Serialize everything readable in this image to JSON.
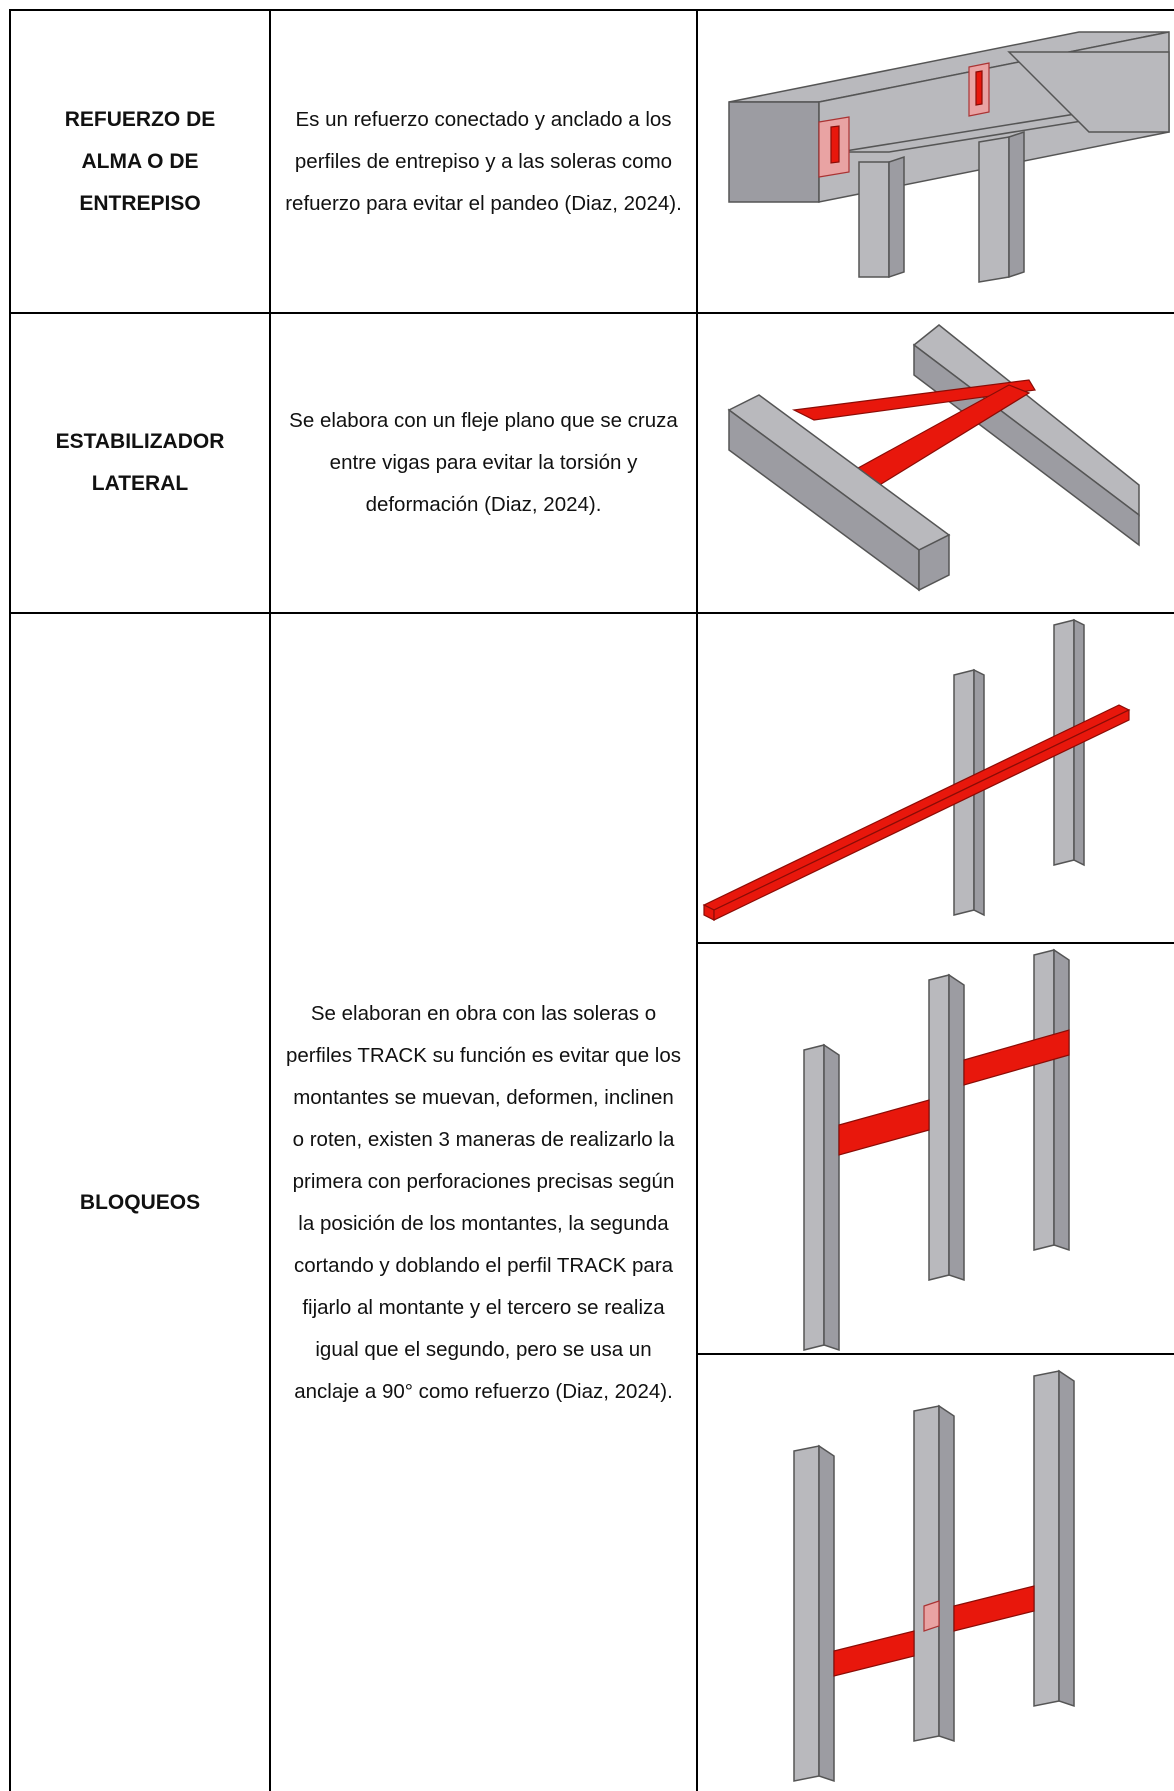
{
  "table": {
    "rows": [
      {
        "term": "REFUERZO DE ALMA O DE ENTREPISO",
        "description": "Es un refuerzo conectado y anclado a los perfiles de entrepiso y a las soleras como refuerzo para evitar el pandeo (Diaz, 2024)."
      },
      {
        "term": "ESTABILIZADOR LATERAL",
        "description": "Se elabora con un fleje plano que se cruza entre vigas para evitar la torsión y deformación (Diaz, 2024)."
      },
      {
        "term": "BLOQUEOS",
        "description": "Se elaboran en obra con las soleras o perfiles TRACK su función es evitar que los montantes se muevan, deformen, inclinen o roten, existen 3 maneras de realizarlo la primera con perforaciones precisas según la posición de los montantes, la segunda cortando y doblando el perfil TRACK para fijarlo al montante y el tercero se realiza igual que el segundo, pero se usa un anclaje a 90° como refuerzo (Diaz, 2024)."
      }
    ]
  }
}
